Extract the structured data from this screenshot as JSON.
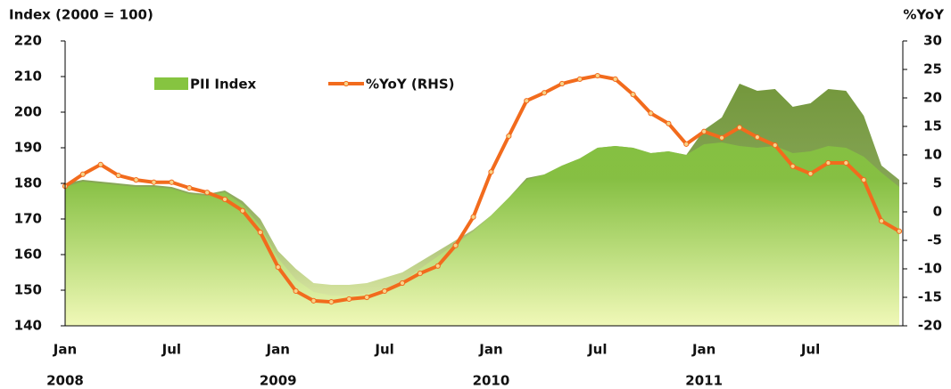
{
  "chart_data": {
    "type": "area-line",
    "y_label": "Index (2000 = 100)",
    "y2_label": "%YoY",
    "categories": [
      "Jan",
      null,
      null,
      null,
      null,
      null,
      "Jul",
      null,
      null,
      null,
      null,
      null,
      "Jan",
      null,
      null,
      null,
      null,
      null,
      "Jul",
      null,
      null,
      null,
      null,
      null,
      "Jan",
      null,
      null,
      null,
      null,
      null,
      "Jul",
      null,
      null,
      null,
      null,
      null,
      "Jan",
      null,
      null,
      null,
      null,
      null,
      "Jul",
      null,
      null,
      null,
      null,
      null
    ],
    "category_years": [
      "2008",
      null,
      null,
      null,
      null,
      null,
      null,
      null,
      null,
      null,
      null,
      null,
      "2009",
      null,
      null,
      null,
      null,
      null,
      null,
      null,
      null,
      null,
      null,
      null,
      "2010",
      null,
      null,
      null,
      null,
      null,
      null,
      null,
      null,
      null,
      null,
      null,
      "2011",
      null,
      null,
      null,
      null,
      null,
      null,
      null,
      null,
      null,
      null,
      null
    ],
    "ylim": [
      140,
      220
    ],
    "yticks": [
      140,
      150,
      160,
      170,
      180,
      190,
      200,
      210,
      220
    ],
    "y2lim": [
      -20,
      30
    ],
    "y2ticks": [
      -20,
      -15,
      -10,
      -5,
      0,
      5,
      10,
      15,
      20,
      25,
      30
    ],
    "series": [
      {
        "color": "#6f9436",
        "values": [
          180,
          181,
          180.5,
          180,
          179.5,
          179.5,
          179,
          177.5,
          177,
          178,
          175,
          170,
          161,
          156,
          152,
          151.5,
          151.5,
          152,
          153.5,
          155,
          158,
          161,
          164,
          167,
          171,
          176,
          181.5,
          182.5,
          185,
          187,
          190,
          190.5,
          190,
          188.5,
          189,
          188,
          195,
          198.5,
          208,
          206,
          206.5,
          201.5,
          202.5,
          206.5,
          206,
          199,
          185,
          181
        ]
      },
      {
        "name": "PII Index",
        "color": "#86c440",
        "values": [
          179,
          180.5,
          180,
          179.5,
          179,
          179,
          178.5,
          177,
          176.5,
          177.5,
          174,
          168,
          159,
          153,
          149.5,
          148.5,
          148.5,
          149,
          150.5,
          152.5,
          156,
          159.5,
          163,
          166.5,
          171,
          176,
          181,
          182.5,
          185,
          187,
          190,
          190.5,
          190,
          188.5,
          189,
          188,
          191,
          191.5,
          190.5,
          190,
          190.5,
          188.5,
          189,
          190.5,
          190,
          187.5,
          183,
          179
        ]
      },
      {
        "name": "%YoY (RHS)",
        "color": "#f26b1d",
        "axis": "y2",
        "values": [
          4.5,
          6.6,
          8.3,
          6.4,
          5.6,
          5.2,
          5.2,
          4.2,
          3.4,
          2.2,
          0.2,
          -3.6,
          -9.7,
          -13.9,
          -15.6,
          -15.8,
          -15.3,
          -15,
          -13.9,
          -12.5,
          -10.8,
          -9.5,
          -5.9,
          -0.9,
          7,
          13.3,
          19.5,
          20.9,
          22.5,
          23.3,
          23.9,
          23.3,
          20.6,
          17.3,
          15.5,
          11.9,
          14.1,
          13,
          14.8,
          13.1,
          11.7,
          8,
          6.7,
          8.6,
          8.6,
          5.6,
          -1.6,
          -3.4
        ]
      }
    ]
  }
}
